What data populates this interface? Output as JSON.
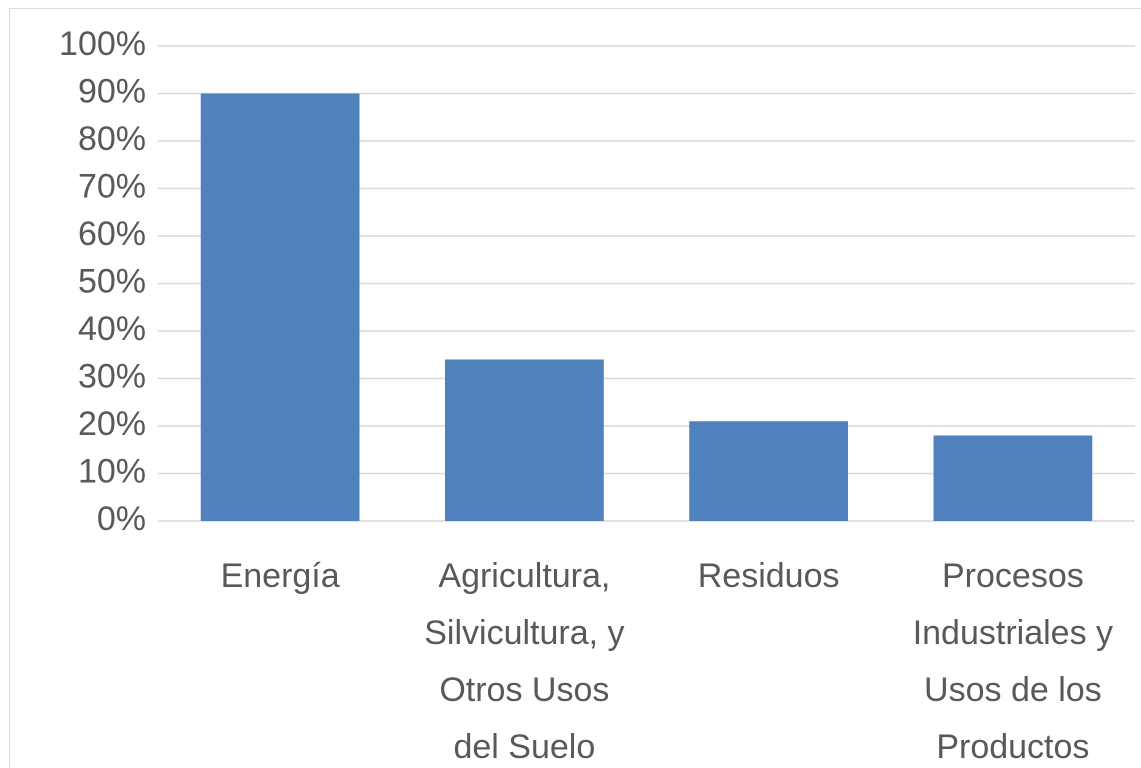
{
  "chart_data": {
    "type": "bar",
    "categories": [
      "Energía",
      "Agricultura,\nSilvicultura, y\nOtros Usos\ndel Suelo",
      "Residuos",
      "Procesos\nIndustriales y\nUsos de los\nProductos"
    ],
    "values": [
      90,
      34,
      21,
      18
    ],
    "color": "#4f81bd",
    "ylim": [
      0,
      100
    ],
    "yticks": [
      {
        "value": 0,
        "label": "0%"
      },
      {
        "value": 10,
        "label": "10%"
      },
      {
        "value": 20,
        "label": "20%"
      },
      {
        "value": 30,
        "label": "30%"
      },
      {
        "value": 40,
        "label": "40%"
      },
      {
        "value": 50,
        "label": "50%"
      },
      {
        "value": 60,
        "label": "60%"
      },
      {
        "value": 70,
        "label": "70%"
      },
      {
        "value": 80,
        "label": "80%"
      },
      {
        "value": 90,
        "label": "90%"
      },
      {
        "value": 100,
        "label": "100%"
      }
    ],
    "grid": true
  }
}
